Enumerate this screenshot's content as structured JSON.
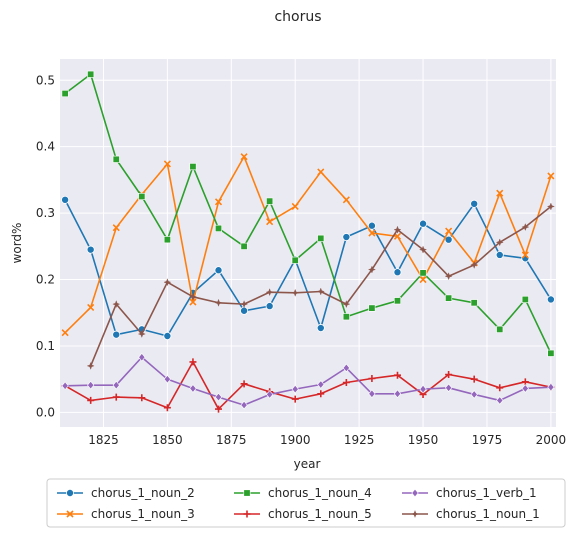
{
  "chart_data": {
    "type": "line",
    "title": "chorus",
    "xlabel": "year",
    "ylabel": "word%",
    "xlim": [
      1808,
      2002
    ],
    "ylim": [
      -0.022,
      0.532
    ],
    "xticks": [
      1825,
      1850,
      1875,
      1900,
      1925,
      1950,
      1975,
      2000
    ],
    "yticks": [
      0.0,
      0.1,
      0.2,
      0.3,
      0.4,
      0.5
    ],
    "grid": true,
    "legend_position": "bottom",
    "x": [
      1810,
      1820,
      1830,
      1840,
      1850,
      1860,
      1870,
      1880,
      1890,
      1900,
      1910,
      1920,
      1930,
      1940,
      1950,
      1960,
      1970,
      1980,
      1990,
      2000
    ],
    "series": [
      {
        "name": "chorus_1_noun_2",
        "color": "#1f77b4",
        "marker": "circle",
        "values": [
          0.32,
          0.245,
          0.117,
          0.125,
          0.115,
          0.18,
          0.214,
          0.153,
          0.16,
          0.23,
          0.127,
          0.264,
          0.281,
          0.211,
          0.284,
          0.26,
          0.314,
          0.237,
          0.232,
          0.17
        ]
      },
      {
        "name": "chorus_1_noun_3",
        "color": "#ff7f0e",
        "marker": "x",
        "values": [
          0.12,
          0.158,
          0.278,
          0.328,
          0.374,
          0.166,
          0.317,
          0.385,
          0.287,
          0.31,
          0.362,
          0.32,
          0.27,
          0.265,
          0.2,
          0.273,
          0.225,
          0.33,
          0.237,
          0.356
        ]
      },
      {
        "name": "chorus_1_noun_4",
        "color": "#2ca02c",
        "marker": "square",
        "values": [
          0.48,
          0.509,
          0.381,
          0.325,
          0.26,
          0.37,
          0.277,
          0.25,
          0.318,
          0.229,
          0.262,
          0.144,
          0.157,
          0.168,
          0.21,
          0.172,
          0.165,
          0.125,
          0.17,
          0.089
        ]
      },
      {
        "name": "chorus_1_noun_5",
        "color": "#d62728",
        "marker": "plus",
        "values": [
          0.04,
          0.018,
          0.023,
          0.022,
          0.007,
          0.076,
          0.005,
          0.043,
          0.031,
          0.02,
          0.028,
          0.045,
          0.051,
          0.056,
          0.027,
          0.057,
          0.05,
          0.037,
          0.046,
          0.038
        ]
      },
      {
        "name": "chorus_1_verb_1",
        "color": "#9467bd",
        "marker": "diamond",
        "values": [
          0.04,
          0.041,
          0.041,
          0.083,
          0.05,
          0.036,
          0.023,
          0.011,
          0.027,
          0.035,
          0.042,
          0.067,
          0.028,
          0.028,
          0.035,
          0.037,
          0.027,
          0.018,
          0.036,
          0.038
        ]
      },
      {
        "name": "chorus_1_noun_1",
        "color": "#8c564b",
        "marker": "star",
        "values": [
          null,
          0.07,
          0.163,
          0.118,
          0.196,
          0.174,
          0.165,
          0.163,
          0.181,
          0.18,
          0.182,
          0.163,
          0.215,
          0.275,
          0.245,
          0.205,
          0.222,
          0.256,
          0.279,
          0.31
        ]
      }
    ]
  }
}
